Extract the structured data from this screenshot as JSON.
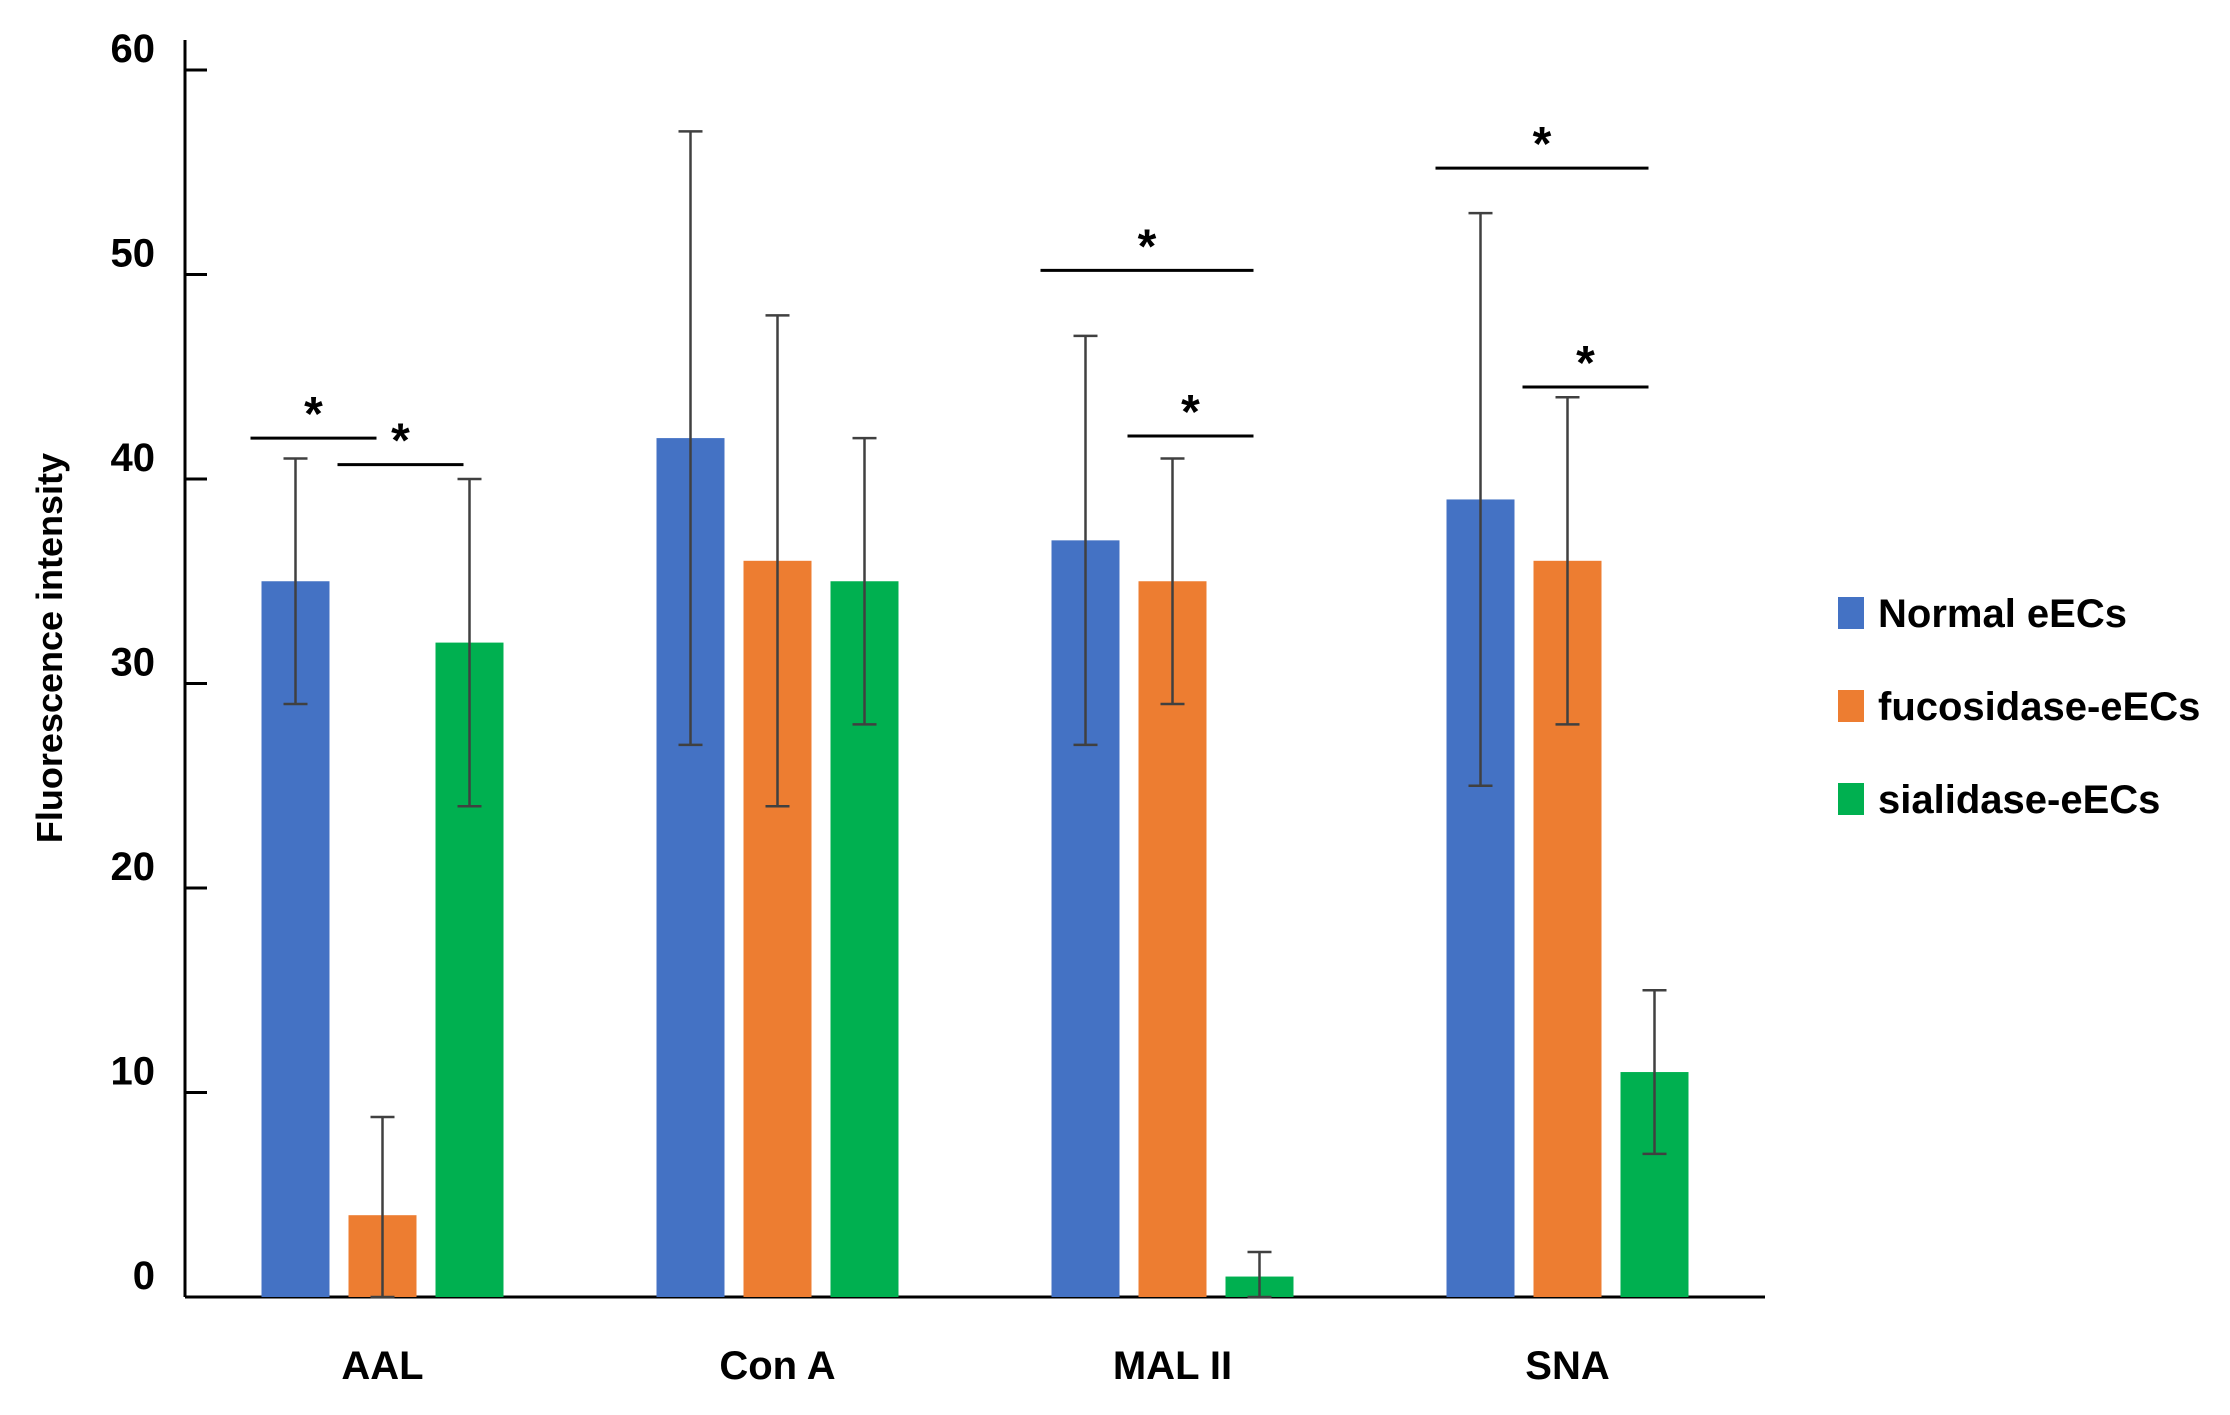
{
  "chart_data": {
    "type": "bar",
    "title": "",
    "xlabel": "",
    "ylabel": "Fluorescence intensity",
    "ylim": [
      0,
      60
    ],
    "yticks": [
      "0",
      "10",
      "20",
      "30",
      "40",
      "50",
      "60"
    ],
    "categories": [
      "AAL",
      "Con A",
      "MAL II",
      "SNA"
    ],
    "series": [
      {
        "name": "Normal eECs",
        "color": "#4472C4",
        "values": [
          35,
          42,
          37,
          39
        ],
        "errors": [
          6,
          15,
          10,
          14
        ]
      },
      {
        "name": "fucosidase-eECs",
        "color": "#ED7D31",
        "values": [
          4,
          36,
          35,
          36
        ],
        "errors": [
          4.8,
          12,
          6,
          8
        ]
      },
      {
        "name": "sialidase-eECs",
        "color": "#00B050",
        "values": [
          32,
          35,
          1,
          11
        ],
        "errors": [
          8,
          7,
          1.2,
          4
        ]
      }
    ],
    "legend_position": "right",
    "significance": [
      {
        "category": "AAL",
        "from": "Normal eECs",
        "to": "fucosidase-eECs",
        "level": 42,
        "label": "*"
      },
      {
        "category": "AAL",
        "from": "fucosidase-eECs",
        "to": "sialidase-eECs",
        "level": 40.7,
        "label": "*"
      },
      {
        "category": "MAL II",
        "from": "Normal eECs",
        "to": "sialidase-eECs",
        "level": 50.2,
        "label": "*"
      },
      {
        "category": "MAL II",
        "from": "fucosidase-eECs",
        "to": "sialidase-eECs",
        "level": 42.1,
        "label": "*"
      },
      {
        "category": "SNA",
        "from": "Normal eECs",
        "to": "sialidase-eECs",
        "level": 55.2,
        "label": "*"
      },
      {
        "category": "SNA",
        "from": "fucosidase-eECs",
        "to": "sialidase-eECs",
        "level": 44.5,
        "label": "*"
      }
    ]
  }
}
